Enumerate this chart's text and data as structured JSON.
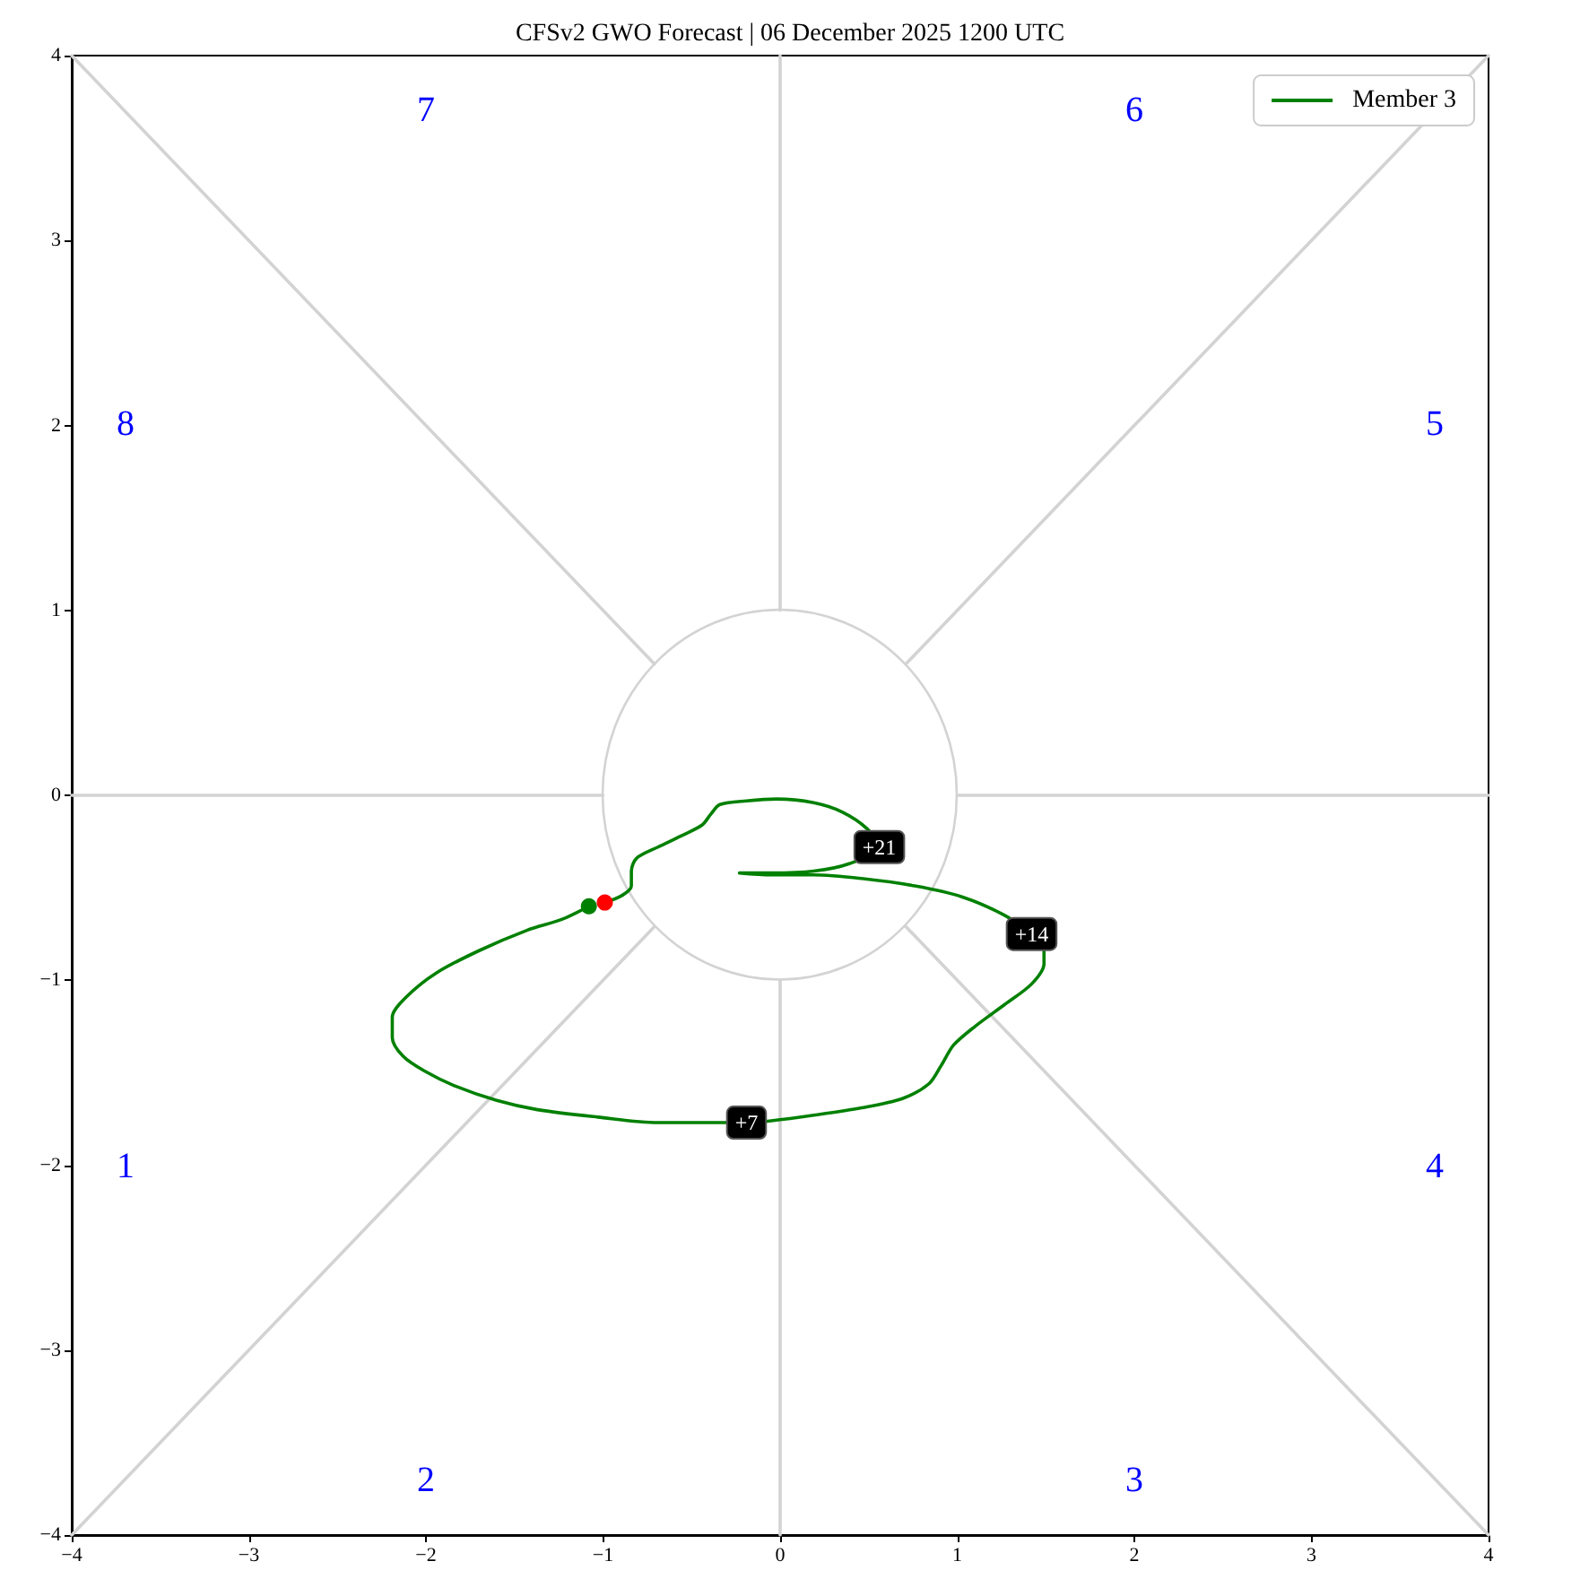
{
  "chart_data": {
    "type": "line",
    "title": "CFSv2 GWO Forecast | 06 December 2025 1200 UTC",
    "xlim": [
      -4,
      4
    ],
    "ylim": [
      -4,
      4
    ],
    "xticks": [
      {
        "value": -4,
        "label": "−4"
      },
      {
        "value": -3,
        "label": "−3"
      },
      {
        "value": -2,
        "label": "−2"
      },
      {
        "value": -1,
        "label": "−1"
      },
      0,
      1,
      2,
      3,
      4
    ],
    "yticks": [
      {
        "value": -4,
        "label": "−4"
      },
      {
        "value": -3,
        "label": "−3"
      },
      {
        "value": -2,
        "label": "−2"
      },
      {
        "value": -1,
        "label": "−1"
      },
      0,
      1,
      2,
      3,
      4
    ],
    "legend": "top right",
    "marker": "none",
    "line_style": "solid",
    "series": [
      {
        "color": "#d3d3d3",
        "x": [
          -4,
          -1
        ],
        "values": [
          0,
          0
        ]
      },
      {
        "color": "#d3d3d3",
        "x": [
          1,
          4
        ],
        "values": [
          0,
          0
        ]
      },
      {
        "color": "#d3d3d3",
        "x": [
          0,
          0
        ],
        "values": [
          -4,
          -1
        ]
      },
      {
        "color": "#d3d3d3",
        "x": [
          0,
          0
        ],
        "values": [
          1,
          4
        ]
      },
      {
        "color": "#d3d3d3",
        "x": [
          -4,
          -0.71
        ],
        "values": [
          -4,
          -0.71
        ]
      },
      {
        "color": "#d3d3d3",
        "x": [
          0.71,
          4
        ],
        "values": [
          0.71,
          4
        ]
      },
      {
        "color": "#d3d3d3",
        "x": [
          -4,
          -0.71
        ],
        "values": [
          4,
          0.71
        ]
      },
      {
        "color": "#d3d3d3",
        "x": [
          0.71,
          4
        ],
        "values": [
          -0.71,
          -4
        ]
      },
      {
        "name": "Member 3",
        "color": "#008000",
        "x": [
          -1.08,
          -1.23,
          -1.43,
          -1.7,
          -1.94,
          -2.11,
          -2.19,
          -2.19,
          -2.13,
          -2.01,
          -1.84,
          -1.6,
          -1.37,
          -1.03,
          -0.69,
          -0.35,
          -0.19,
          -0.05,
          0.19,
          0.46,
          0.69,
          0.84,
          0.91,
          0.98,
          1.1,
          1.27,
          1.42,
          1.49,
          1.49,
          1.42,
          1.27,
          1.03,
          0.76,
          0.46,
          0.19,
          -0.05,
          -0.23,
          -0.05,
          0.19,
          0.39,
          0.56,
          0.49,
          0.35,
          0.19,
          -0.02,
          -0.19,
          -0.34,
          -0.39,
          -0.44,
          -0.56,
          -0.69,
          -0.81,
          -0.84,
          -0.84,
          -0.89,
          -0.99
        ],
        "values": [
          -0.6,
          -0.67,
          -0.73,
          -0.84,
          -0.96,
          -1.09,
          -1.2,
          -1.31,
          -1.41,
          -1.49,
          -1.57,
          -1.65,
          -1.7,
          -1.74,
          -1.77,
          -1.77,
          -1.77,
          -1.76,
          -1.73,
          -1.69,
          -1.64,
          -1.56,
          -1.46,
          -1.35,
          -1.25,
          -1.13,
          -1.02,
          -0.91,
          -0.84,
          -0.75,
          -0.65,
          -0.55,
          -0.49,
          -0.45,
          -0.43,
          -0.43,
          -0.42,
          -0.42,
          -0.41,
          -0.37,
          -0.28,
          -0.18,
          -0.09,
          -0.04,
          -0.02,
          -0.03,
          -0.05,
          -0.1,
          -0.16,
          -0.22,
          -0.28,
          -0.34,
          -0.41,
          -0.49,
          -0.54,
          -0.58
        ]
      },
      {
        "type": "scatter",
        "marker": "circle",
        "color": "#008000",
        "x": [
          -1.08
        ],
        "values": [
          -0.6
        ]
      },
      {
        "type": "scatter",
        "marker": "circle",
        "color": "#ff0000",
        "x": [
          -0.99
        ],
        "values": [
          -0.58
        ]
      }
    ],
    "annotations": [
      "1",
      "2",
      "3",
      "4",
      "5",
      "6",
      "7",
      "8",
      {
        "text": "+7",
        "x": -0.19,
        "y": -1.77
      },
      {
        "text": "+14",
        "x": 1.42,
        "y": -0.75
      },
      {
        "text": "+21",
        "x": 0.56,
        "y": -0.28
      }
    ]
  }
}
